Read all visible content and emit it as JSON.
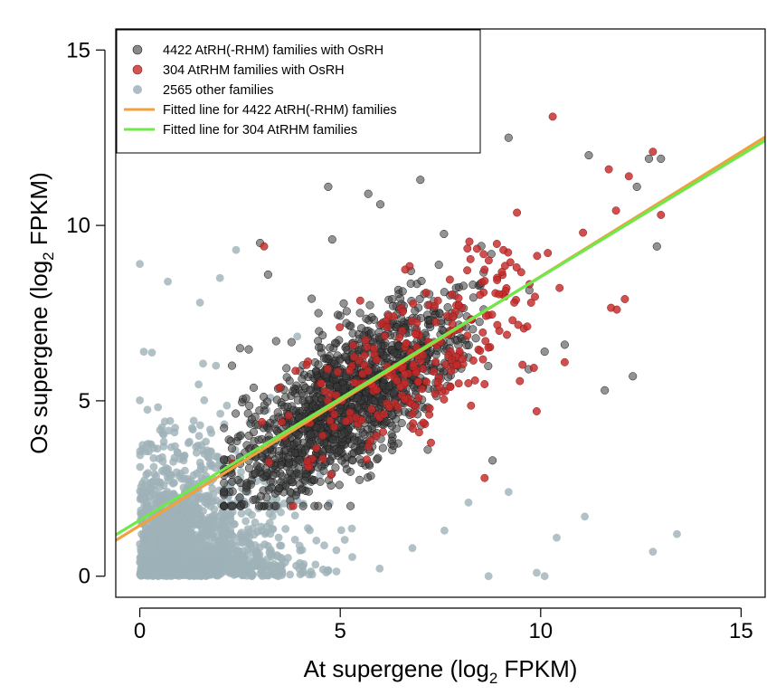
{
  "chart_data": {
    "type": "scatter",
    "title": "",
    "xlabel": {
      "main": "At supergene (log",
      "sub": "2",
      "tail": " FPKM)"
    },
    "ylabel": {
      "main": "Os supergene (log",
      "sub": "2",
      "tail": " FPKM)"
    },
    "xlim": [
      -0.6,
      15.6
    ],
    "ylim": [
      -0.6,
      15.6
    ],
    "xticks": [
      0,
      5,
      10,
      15
    ],
    "yticks": [
      0,
      5,
      10,
      15
    ],
    "xtick_labels": [
      "0",
      "5",
      "10",
      "15"
    ],
    "ytick_labels": [
      "0",
      "5",
      "10",
      "15"
    ],
    "grid": false,
    "legend_position": "top-left",
    "series": [
      {
        "name": "4422 AtRH(-RHM) families with OsRH",
        "kind": "points",
        "color": "#3a3a3a",
        "count": 4422,
        "cloud": {
          "x_range": [
            2.1,
            13.2
          ],
          "y_range": [
            2.0,
            12.5
          ],
          "center": [
            5.2,
            5.0
          ],
          "sd": [
            1.4,
            1.4
          ],
          "corr": 0.72,
          "n_drawn": 1500
        },
        "points": [
          [
            9.2,
            12.5
          ],
          [
            13.0,
            11.9
          ],
          [
            12.7,
            11.9
          ],
          [
            11.2,
            12.0
          ],
          [
            12.4,
            11.1
          ],
          [
            7.0,
            11.3
          ],
          [
            5.7,
            10.9
          ],
          [
            4.7,
            11.1
          ],
          [
            3.0,
            9.5
          ],
          [
            2.5,
            6.5
          ],
          [
            2.3,
            6.0
          ],
          [
            12.9,
            9.4
          ],
          [
            12.3,
            5.7
          ],
          [
            11.6,
            5.3
          ],
          [
            10.6,
            6.6
          ],
          [
            8.8,
            3.3
          ],
          [
            10.1,
            6.4
          ],
          [
            9.7,
            5.9
          ],
          [
            3.2,
            8.6
          ],
          [
            4.8,
            9.6
          ],
          [
            6.0,
            10.6
          ]
        ]
      },
      {
        "name": "304 AtRHM families with OsRH",
        "kind": "points",
        "color": "#c62a2a",
        "count": 304,
        "cloud": {
          "x_range": [
            2.3,
            13.0
          ],
          "y_range": [
            2.0,
            13.0
          ],
          "center": [
            7.0,
            6.3
          ],
          "sd": [
            1.6,
            1.5
          ],
          "corr": 0.65,
          "n_drawn": 260
        },
        "points": [
          [
            10.3,
            13.1
          ],
          [
            12.8,
            12.1
          ],
          [
            11.7,
            11.6
          ],
          [
            12.2,
            11.4
          ],
          [
            13.0,
            10.3
          ],
          [
            12.1,
            7.9
          ],
          [
            11.9,
            7.6
          ],
          [
            10.6,
            6.1
          ],
          [
            9.9,
            4.7
          ],
          [
            8.6,
            2.8
          ],
          [
            3.1,
            9.4
          ],
          [
            6.5,
            5.4
          ],
          [
            5.9,
            4.0
          ]
        ]
      },
      {
        "name": "2565 other families",
        "kind": "points",
        "color": "#9db2b8",
        "count": 2565,
        "cloud": {
          "x_range": [
            0,
            10.2
          ],
          "y_range": [
            0,
            9.3
          ],
          "center": [
            1.4,
            1.3
          ],
          "sd": [
            1.4,
            1.6
          ],
          "corr": 0.15,
          "n_drawn": 1700
        },
        "points": [
          [
            0.0,
            8.9
          ],
          [
            2.4,
            9.3
          ],
          [
            2.0,
            8.5
          ],
          [
            0.7,
            8.4
          ],
          [
            1.5,
            7.8
          ],
          [
            13.4,
            1.2
          ],
          [
            12.8,
            0.7
          ],
          [
            11.1,
            1.7
          ],
          [
            10.4,
            1.1
          ],
          [
            9.2,
            2.4
          ],
          [
            8.2,
            2.1
          ],
          [
            9.9,
            0.1
          ],
          [
            10.1,
            0.0
          ],
          [
            8.7,
            0.0
          ],
          [
            7.6,
            1.3
          ],
          [
            6.8,
            0.8
          ],
          [
            0.1,
            6.4
          ],
          [
            1.9,
            6.0
          ]
        ]
      },
      {
        "name": "Fitted line for 4422 AtRH(-RHM) families",
        "kind": "line",
        "color": "#f0a03c",
        "endpoints": [
          [
            -0.6,
            1.02
          ],
          [
            15.6,
            12.52
          ]
        ]
      },
      {
        "name": "Fitted line for 304 AtRHM families",
        "kind": "line",
        "color": "#6ee84a",
        "endpoints": [
          [
            -0.6,
            1.18
          ],
          [
            15.6,
            12.42
          ]
        ]
      }
    ]
  }
}
